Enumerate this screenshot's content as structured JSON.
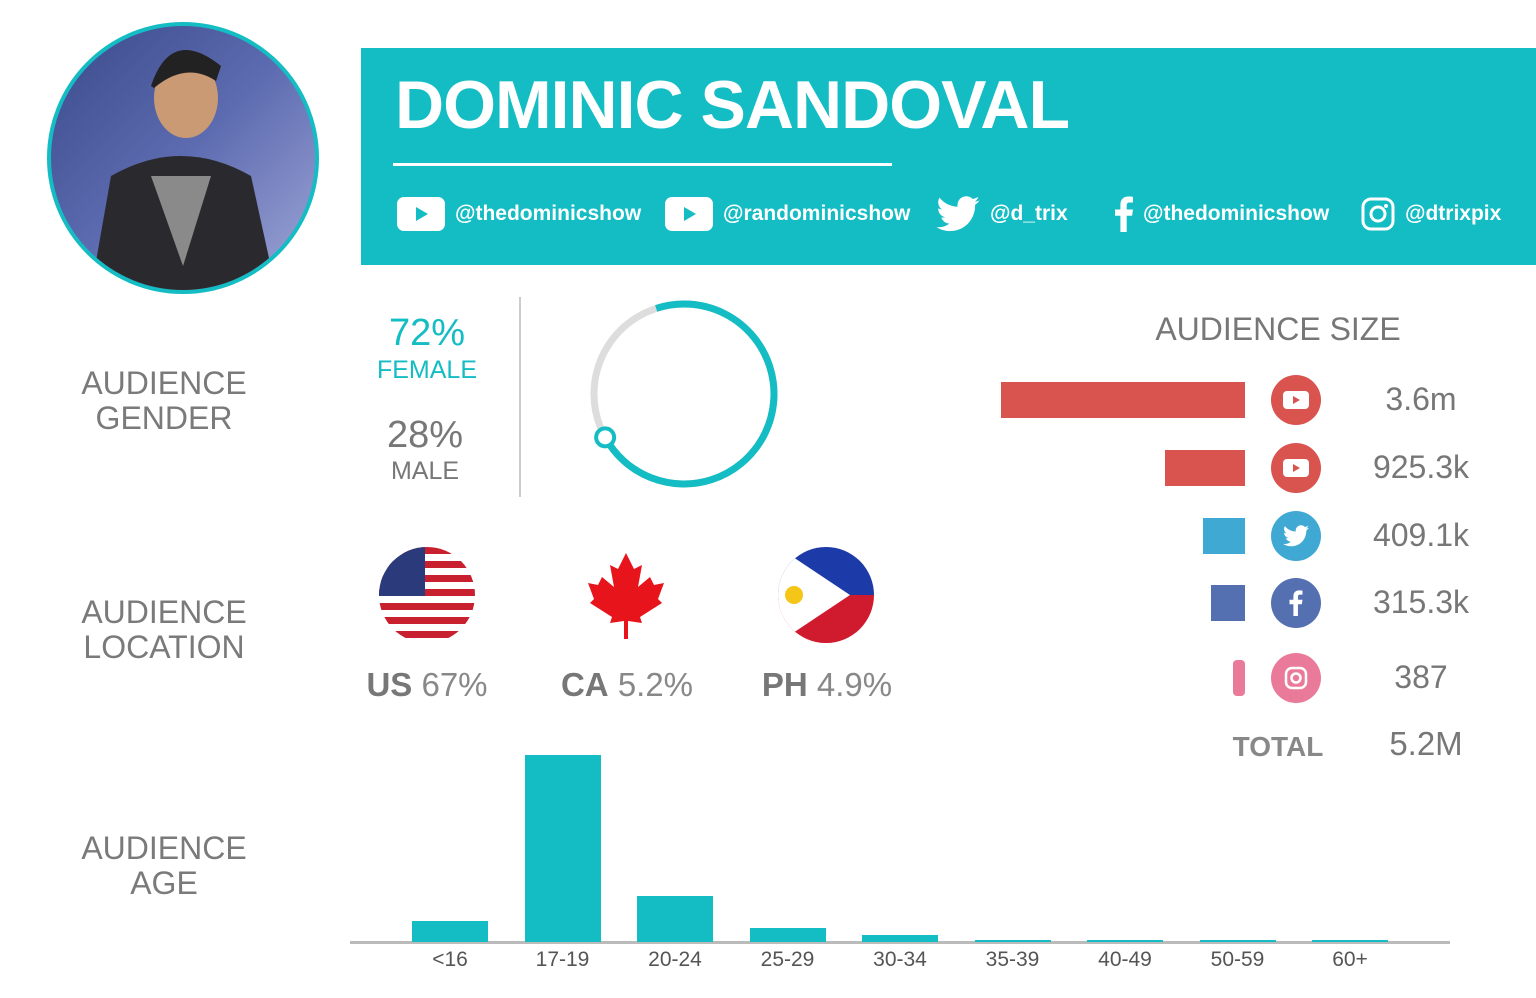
{
  "profile": {
    "name": "DOMINIC SANDOVAL"
  },
  "socials": [
    {
      "icon": "youtube-icon",
      "handle": "@thedominicshow"
    },
    {
      "icon": "youtube-icon",
      "handle": "@randominicshow"
    },
    {
      "icon": "twitter-icon",
      "handle": "@d_trix"
    },
    {
      "icon": "facebook-icon",
      "handle": "@thedominicshow"
    },
    {
      "icon": "instagram-icon",
      "handle": "@dtrixpix"
    }
  ],
  "gender": {
    "label_1": "AUDIENCE",
    "label_2": "GENDER",
    "female_pct": "72%",
    "female_label": "FEMALE",
    "male_pct": "28%",
    "male_label": "MALE",
    "female_fraction": 0.72
  },
  "location": {
    "label_1": "AUDIENCE",
    "label_2": "LOCATION",
    "countries": [
      {
        "code": "US",
        "pct": "67%"
      },
      {
        "code": "CA",
        "pct": "5.2%"
      },
      {
        "code": "PH",
        "pct": "4.9%"
      }
    ]
  },
  "audience_size": {
    "title": "AUDIENCE SIZE",
    "rows": [
      {
        "platform": "youtube",
        "value": "3.6m",
        "num": 3600,
        "color": "#d9534f"
      },
      {
        "platform": "youtube",
        "value": "925.3k",
        "num": 925.3,
        "color": "#d9534f"
      },
      {
        "platform": "twitter",
        "value": "409.1k",
        "num": 409.1,
        "color": "#3fa9d4"
      },
      {
        "platform": "facebook",
        "value": "315.3k",
        "num": 315.3,
        "color": "#5470b0"
      },
      {
        "platform": "instagram",
        "value": "387",
        "num": 0.387,
        "color": "#ea7a9a"
      }
    ],
    "total_label": "TOTAL",
    "total_value": "5.2M"
  },
  "age": {
    "label_1": "AUDIENCE",
    "label_2": "AGE"
  },
  "colors": {
    "accent": "#14bcc4"
  },
  "chart_data": {
    "type": "bar",
    "title": "AUDIENCE AGE",
    "xlabel": "",
    "ylabel": "",
    "categories": [
      "<16",
      "17-19",
      "20-24",
      "25-29",
      "30-34",
      "35-39",
      "40-49",
      "50-59",
      "60+"
    ],
    "values": [
      7.5,
      67,
      16.5,
      5,
      2.5,
      0.8,
      0.3,
      0.3,
      0.3
    ],
    "ylim": [
      0,
      67
    ],
    "grid": false
  }
}
